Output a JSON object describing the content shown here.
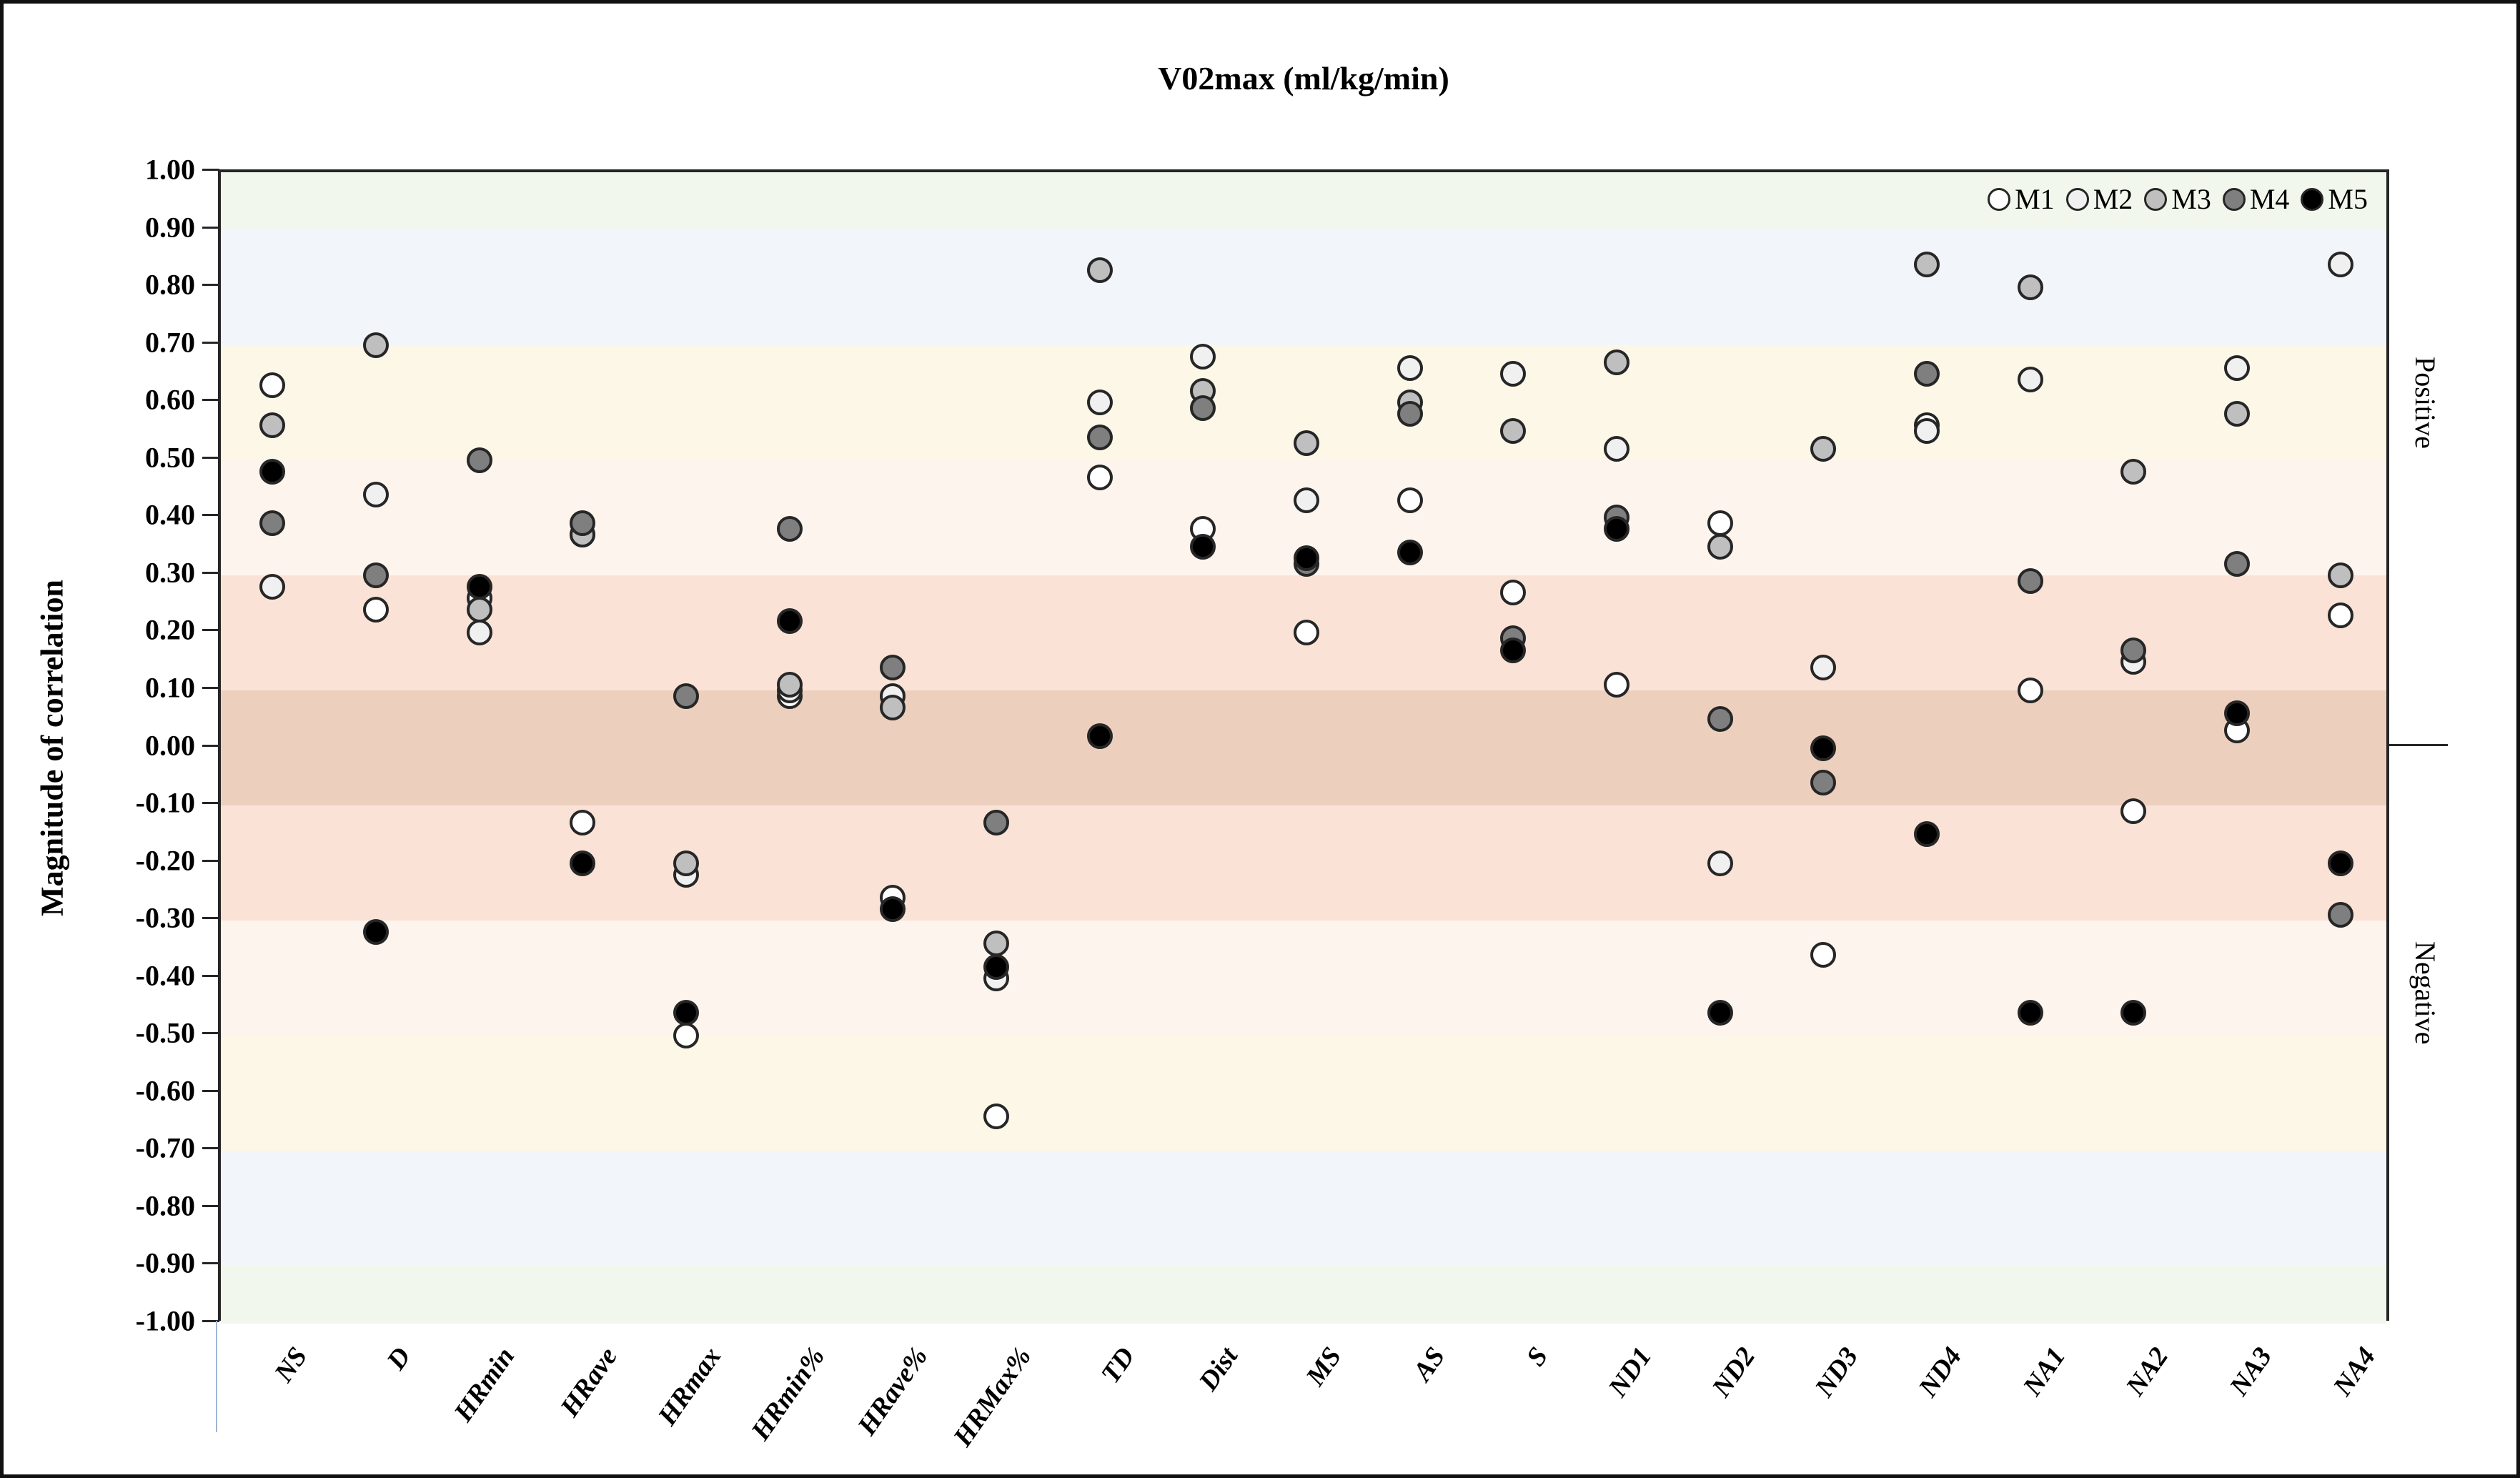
{
  "chart_data": {
    "type": "scatter",
    "title": "V02max (ml/kg/min)",
    "y_axis_title": "Magnitude of correlation",
    "right_labels": {
      "positive": "Positive",
      "negative": "Negative"
    },
    "ylim": [
      -1.0,
      1.0
    ],
    "ytick_step": 0.1,
    "grid": false,
    "legend_position": "top-right-inside",
    "categories": [
      "NS",
      "D",
      "HRmin",
      "HRave",
      "HRmax",
      "HRmin%",
      "HRave%",
      "HRMax%",
      "TD",
      "Dist",
      "MS",
      "AS",
      "S",
      "ND1",
      "ND2",
      "ND3",
      "ND4",
      "NA1",
      "NA2",
      "NA3",
      "NA4"
    ],
    "series": [
      {
        "name": "M1",
        "color": "#ffffff",
        "values": [
          0.63,
          0.24,
          0.26,
          -0.13,
          -0.5,
          0.09,
          -0.26,
          -0.64,
          0.47,
          0.38,
          0.2,
          0.43,
          0.27,
          0.11,
          0.39,
          -0.36,
          0.56,
          0.1,
          -0.11,
          0.03,
          0.23
        ]
      },
      {
        "name": "M2",
        "color": "#f0f0f0",
        "values": [
          0.28,
          0.44,
          0.2,
          0.37,
          -0.22,
          0.1,
          0.09,
          -0.4,
          0.6,
          0.68,
          0.43,
          0.66,
          0.65,
          0.52,
          -0.2,
          0.14,
          0.55,
          0.64,
          0.15,
          0.66,
          0.84
        ]
      },
      {
        "name": "M3",
        "color": "#bfbfbf",
        "values": [
          0.56,
          0.7,
          0.24,
          0.37,
          -0.2,
          0.11,
          0.07,
          -0.34,
          0.83,
          0.62,
          0.53,
          0.6,
          0.55,
          0.67,
          0.35,
          0.52,
          0.84,
          0.8,
          0.48,
          0.58,
          0.3
        ]
      },
      {
        "name": "M4",
        "color": "#7f7f7f",
        "values": [
          0.39,
          0.3,
          0.5,
          0.39,
          0.09,
          0.38,
          0.14,
          -0.13,
          0.54,
          0.59,
          0.32,
          0.58,
          0.19,
          0.4,
          0.05,
          -0.06,
          0.65,
          0.29,
          0.17,
          0.32,
          -0.29
        ]
      },
      {
        "name": "M5",
        "color": "#000000",
        "values": [
          0.48,
          -0.32,
          0.28,
          -0.2,
          -0.46,
          0.22,
          -0.28,
          -0.38,
          0.02,
          0.35,
          0.33,
          0.34,
          0.17,
          0.38,
          -0.46,
          0.0,
          -0.15,
          -0.46,
          -0.46,
          0.06,
          -0.2
        ]
      }
    ],
    "bands": [
      {
        "from": 0.9,
        "to": 1.0,
        "color": "#f1f7ec"
      },
      {
        "from": 0.7,
        "to": 0.9,
        "color": "#f2f6fb"
      },
      {
        "from": 0.5,
        "to": 0.7,
        "color": "#fdf7e7"
      },
      {
        "from": 0.3,
        "to": 0.5,
        "color": "#fdf4ed"
      },
      {
        "from": 0.1,
        "to": 0.3,
        "color": "#fae3d6"
      },
      {
        "from": -0.1,
        "to": 0.1,
        "color": "#ecd0bd"
      },
      {
        "from": -0.3,
        "to": -0.1,
        "color": "#fae3d6"
      },
      {
        "from": -0.5,
        "to": -0.3,
        "color": "#fdf4ed"
      },
      {
        "from": -0.7,
        "to": -0.5,
        "color": "#fdf7e7"
      },
      {
        "from": -0.9,
        "to": -0.7,
        "color": "#f2f6fb"
      },
      {
        "from": -1.0,
        "to": -0.9,
        "color": "#f1f7ec"
      }
    ]
  }
}
